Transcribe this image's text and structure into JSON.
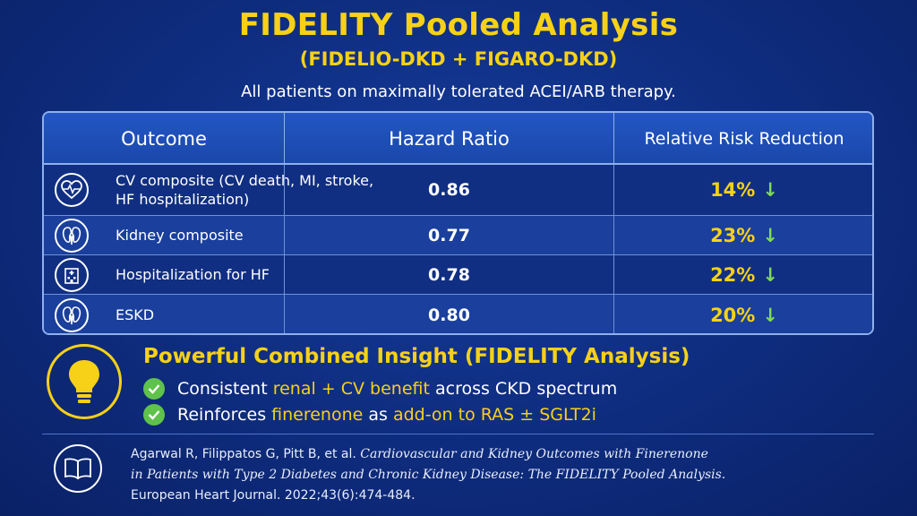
{
  "header": {
    "title": "FIDELITY Pooled Analysis",
    "subtitle": "(FIDELIO-DKD + FIGARO-DKD)",
    "tagline": "All patients on maximally tolerated ACEI/ARB therapy."
  },
  "table": {
    "columns": [
      "Outcome",
      "Hazard Ratio",
      "Relative Risk Reduction"
    ],
    "rows": [
      {
        "outcome": "CV composite (CV death, MI, stroke, HF hospitalization)",
        "hazard_ratio": "0.86",
        "rrr": "14%",
        "icon": "heart-pulse-icon"
      },
      {
        "outcome": "Kidney composite",
        "hazard_ratio": "0.77",
        "rrr": "23%",
        "icon": "kidney-icon"
      },
      {
        "outcome": "Hospitalization for HF",
        "hazard_ratio": "0.78",
        "rrr": "22%",
        "icon": "hospital-icon"
      },
      {
        "outcome": "ESKD",
        "hazard_ratio": "0.80",
        "rrr": "20%",
        "icon": "kidney-icon"
      }
    ],
    "arrow": "↓"
  },
  "insight": {
    "title": "Powerful Combined Insight (FIDELITY Analysis)",
    "bullet1": {
      "pre": "Consistent ",
      "hl": "renal + CV benefit",
      "post": " across CKD spectrum"
    },
    "bullet2": {
      "pre": "Reinforces ",
      "hl1": "finerenone",
      "mid": " as ",
      "hl2": "add-on to RAS ± SGLT2i"
    }
  },
  "citation": {
    "authors": "Agarwal R, Filippatos G, Pitt B, et al.",
    "title_part1": "Cardiovascular and Kidney Outcomes with Finerenone",
    "title_part2": "in Patients with Type 2 Diabetes and Chronic Kidney Disease: The FIDELITY Pooled Analysis.",
    "journal": "European Heart Journal. 2022;43(6):474-484."
  },
  "colors": {
    "background": "#0e2c7e",
    "accent": "#f7d117",
    "check": "#5fc24b",
    "arrow": "#7ed957"
  }
}
